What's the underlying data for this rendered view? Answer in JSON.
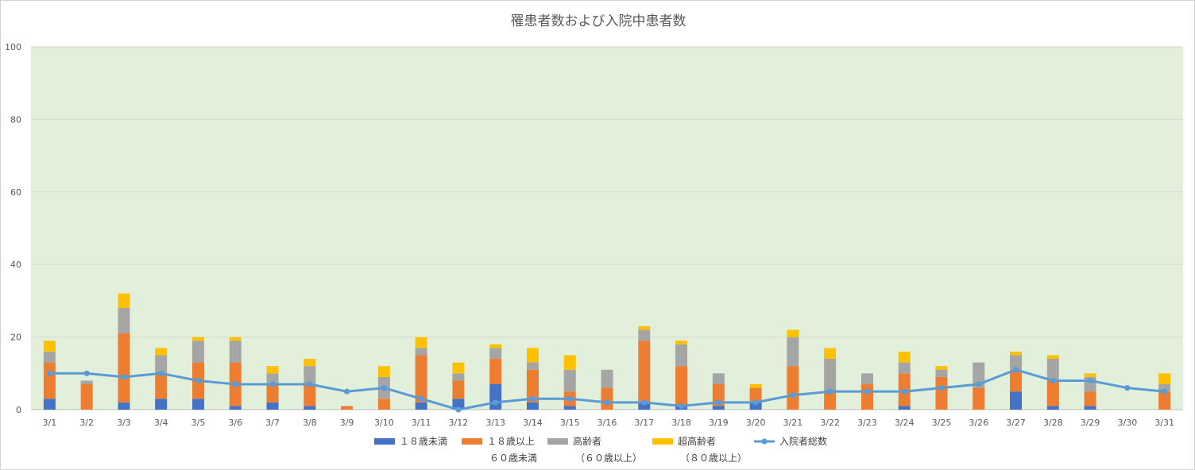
{
  "chart_data": {
    "type": "bar",
    "title": "罹患者数および入院中患者数",
    "categories": [
      "3/1",
      "3/2",
      "3/3",
      "3/4",
      "3/5",
      "3/6",
      "3/7",
      "3/8",
      "3/9",
      "3/10",
      "3/11",
      "3/12",
      "3/13",
      "3/14",
      "3/15",
      "3/16",
      "3/17",
      "3/18",
      "3/19",
      "3/20",
      "3/21",
      "3/22",
      "3/23",
      "3/24",
      "3/25",
      "3/26",
      "3/27",
      "3/28",
      "3/29",
      "3/30",
      "3/31"
    ],
    "ylim": [
      0,
      100
    ],
    "yticks": [
      0,
      20,
      40,
      60,
      80,
      100
    ],
    "grid": true,
    "legend_position": "bottom",
    "plot_background": "#E2EFDA",
    "series": [
      {
        "name": "１８歳未満",
        "type": "bar",
        "color": "#4472C4",
        "values": [
          3,
          0,
          2,
          3,
          3,
          1,
          2,
          1,
          0,
          0,
          2,
          3,
          7,
          2,
          1,
          0,
          2,
          1,
          1,
          2,
          0,
          0,
          0,
          1,
          0,
          0,
          5,
          1,
          1,
          0,
          0
        ]
      },
      {
        "name": "１８歳以上\n６０歳未満",
        "type": "bar",
        "color": "#ED7D31",
        "values": [
          10,
          7,
          19,
          7,
          10,
          12,
          5,
          6,
          1,
          3,
          13,
          5,
          7,
          9,
          4,
          6,
          17,
          11,
          6,
          4,
          12,
          5,
          7,
          9,
          9,
          6,
          6,
          7,
          4,
          0,
          5
        ]
      },
      {
        "name": "高齢者\n（６０歳以上）",
        "type": "bar",
        "color": "#A5A5A5",
        "values": [
          3,
          1,
          7,
          5,
          6,
          6,
          3,
          5,
          0,
          6,
          2,
          2,
          3,
          2,
          6,
          5,
          3,
          6,
          3,
          0,
          8,
          9,
          3,
          3,
          2,
          7,
          4,
          6,
          4,
          0,
          2
        ]
      },
      {
        "name": "超高齢者\n（８０歳以上）",
        "type": "bar",
        "color": "#FFC000",
        "values": [
          3,
          0,
          4,
          2,
          1,
          1,
          2,
          2,
          0,
          3,
          3,
          3,
          1,
          4,
          4,
          0,
          1,
          1,
          0,
          1,
          2,
          3,
          0,
          3,
          1,
          0,
          1,
          1,
          1,
          0,
          3
        ]
      },
      {
        "name": "入院者総数",
        "type": "line",
        "color": "#5B9BD5",
        "values": [
          10,
          10,
          9,
          10,
          8,
          7,
          7,
          7,
          5,
          6,
          3,
          0,
          2,
          3,
          3,
          2,
          2,
          1,
          2,
          2,
          4,
          5,
          5,
          5,
          6,
          7,
          11,
          8,
          8,
          6,
          5
        ]
      }
    ]
  }
}
